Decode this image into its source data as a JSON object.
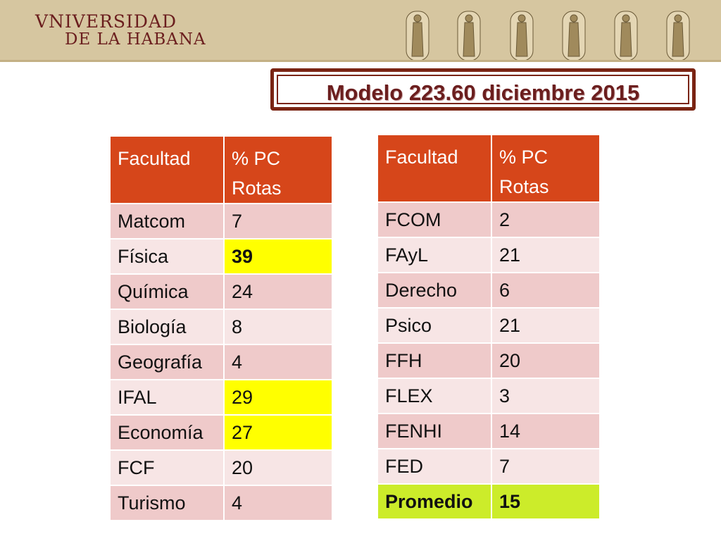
{
  "header": {
    "logo_line1": "VNIVERSIDAD",
    "logo_line2": "DE LA HABANA"
  },
  "title": "Modelo 223.60 diciembre 2015",
  "table_left": {
    "headers": [
      "Facultad",
      "% PC",
      "Rotas"
    ],
    "rows": [
      {
        "facultad": "Matcom",
        "value": "7"
      },
      {
        "facultad": "Física",
        "value": "39"
      },
      {
        "facultad": "Química",
        "value": "24"
      },
      {
        "facultad": "Biología",
        "value": "8"
      },
      {
        "facultad": "Geografía",
        "value": "4"
      },
      {
        "facultad": "IFAL",
        "value": "29"
      },
      {
        "facultad": "Economía",
        "value": "27"
      },
      {
        "facultad": "FCF",
        "value": "20"
      },
      {
        "facultad": "Turismo",
        "value": "4"
      }
    ]
  },
  "table_right": {
    "headers": [
      "Facultad",
      "% PC",
      "Rotas"
    ],
    "rows": [
      {
        "facultad": "FCOM",
        "value": "2"
      },
      {
        "facultad": "FAyL",
        "value": "21"
      },
      {
        "facultad": "Derecho",
        "value": "6"
      },
      {
        "facultad": "Psico",
        "value": "21"
      },
      {
        "facultad": "FFH",
        "value": "20"
      },
      {
        "facultad": "FLEX",
        "value": "3"
      },
      {
        "facultad": "FENHI",
        "value": "14"
      },
      {
        "facultad": "FED",
        "value": "7"
      },
      {
        "facultad": "Promedio",
        "value": "15"
      }
    ]
  },
  "colors": {
    "header_cell": "#d6461a",
    "row_odd": "#efcaca",
    "row_even": "#f7e5e5",
    "highlight_yellow": "#ffff00",
    "highlight_green": "#ccec2a",
    "title_color": "#6b1e1e",
    "band": "#d6c6a0"
  }
}
